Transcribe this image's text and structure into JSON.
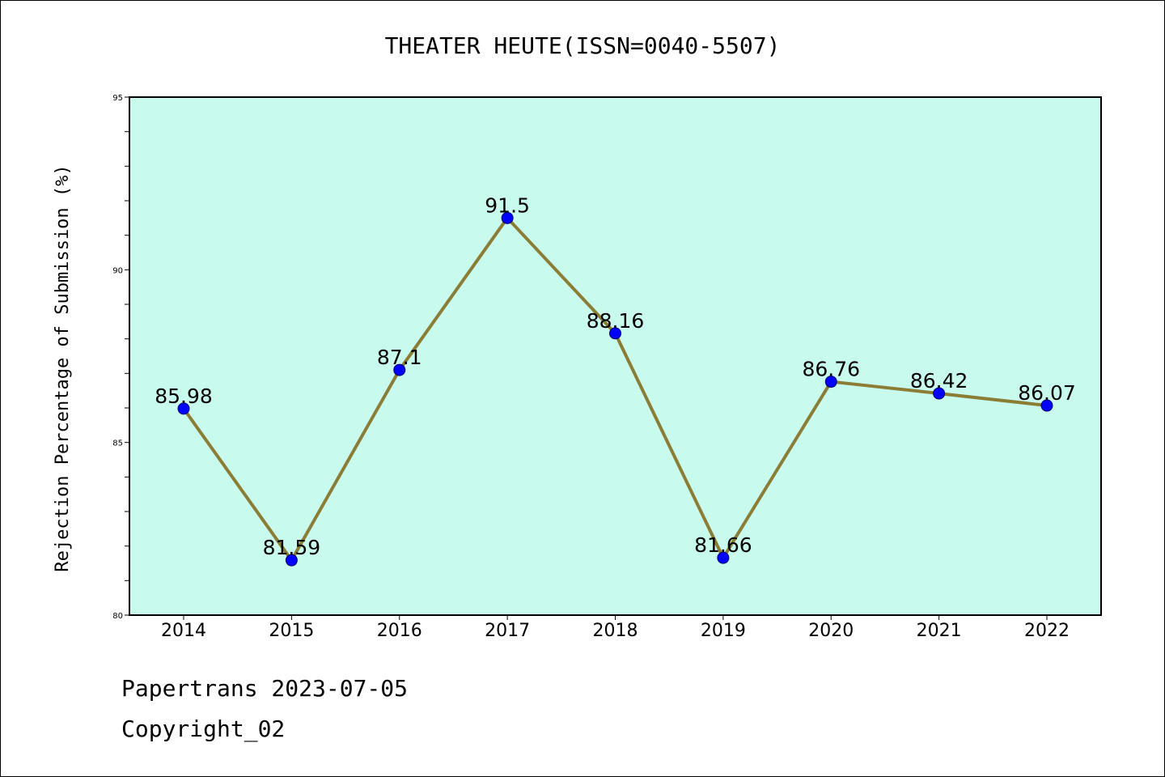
{
  "chart_data": {
    "type": "line",
    "title": "THEATER HEUTE(ISSN=0040-5507)",
    "xlabel": "",
    "ylabel": "Rejection Percentage of Submission (%)",
    "categories": [
      "2014",
      "2015",
      "2016",
      "2017",
      "2018",
      "2019",
      "2020",
      "2021",
      "2022"
    ],
    "values": [
      85.98,
      81.59,
      87.1,
      91.5,
      88.16,
      81.66,
      86.76,
      86.42,
      86.07
    ],
    "data_labels": [
      "85.98",
      "81.59",
      "87.1",
      "91.5",
      "88.16",
      "81.66",
      "86.76",
      "86.42",
      "86.07"
    ],
    "ylim": [
      80,
      95
    ],
    "yticks": [
      "80",
      "85",
      "90",
      "95"
    ],
    "grid": false,
    "legend": "none",
    "colors": {
      "plot_background": "#c8fbee",
      "line": "#8b7d35",
      "marker": "#0000ff"
    }
  },
  "footer": {
    "line1": "Papertrans 2023-07-05",
    "line2": "Copyright_02"
  }
}
